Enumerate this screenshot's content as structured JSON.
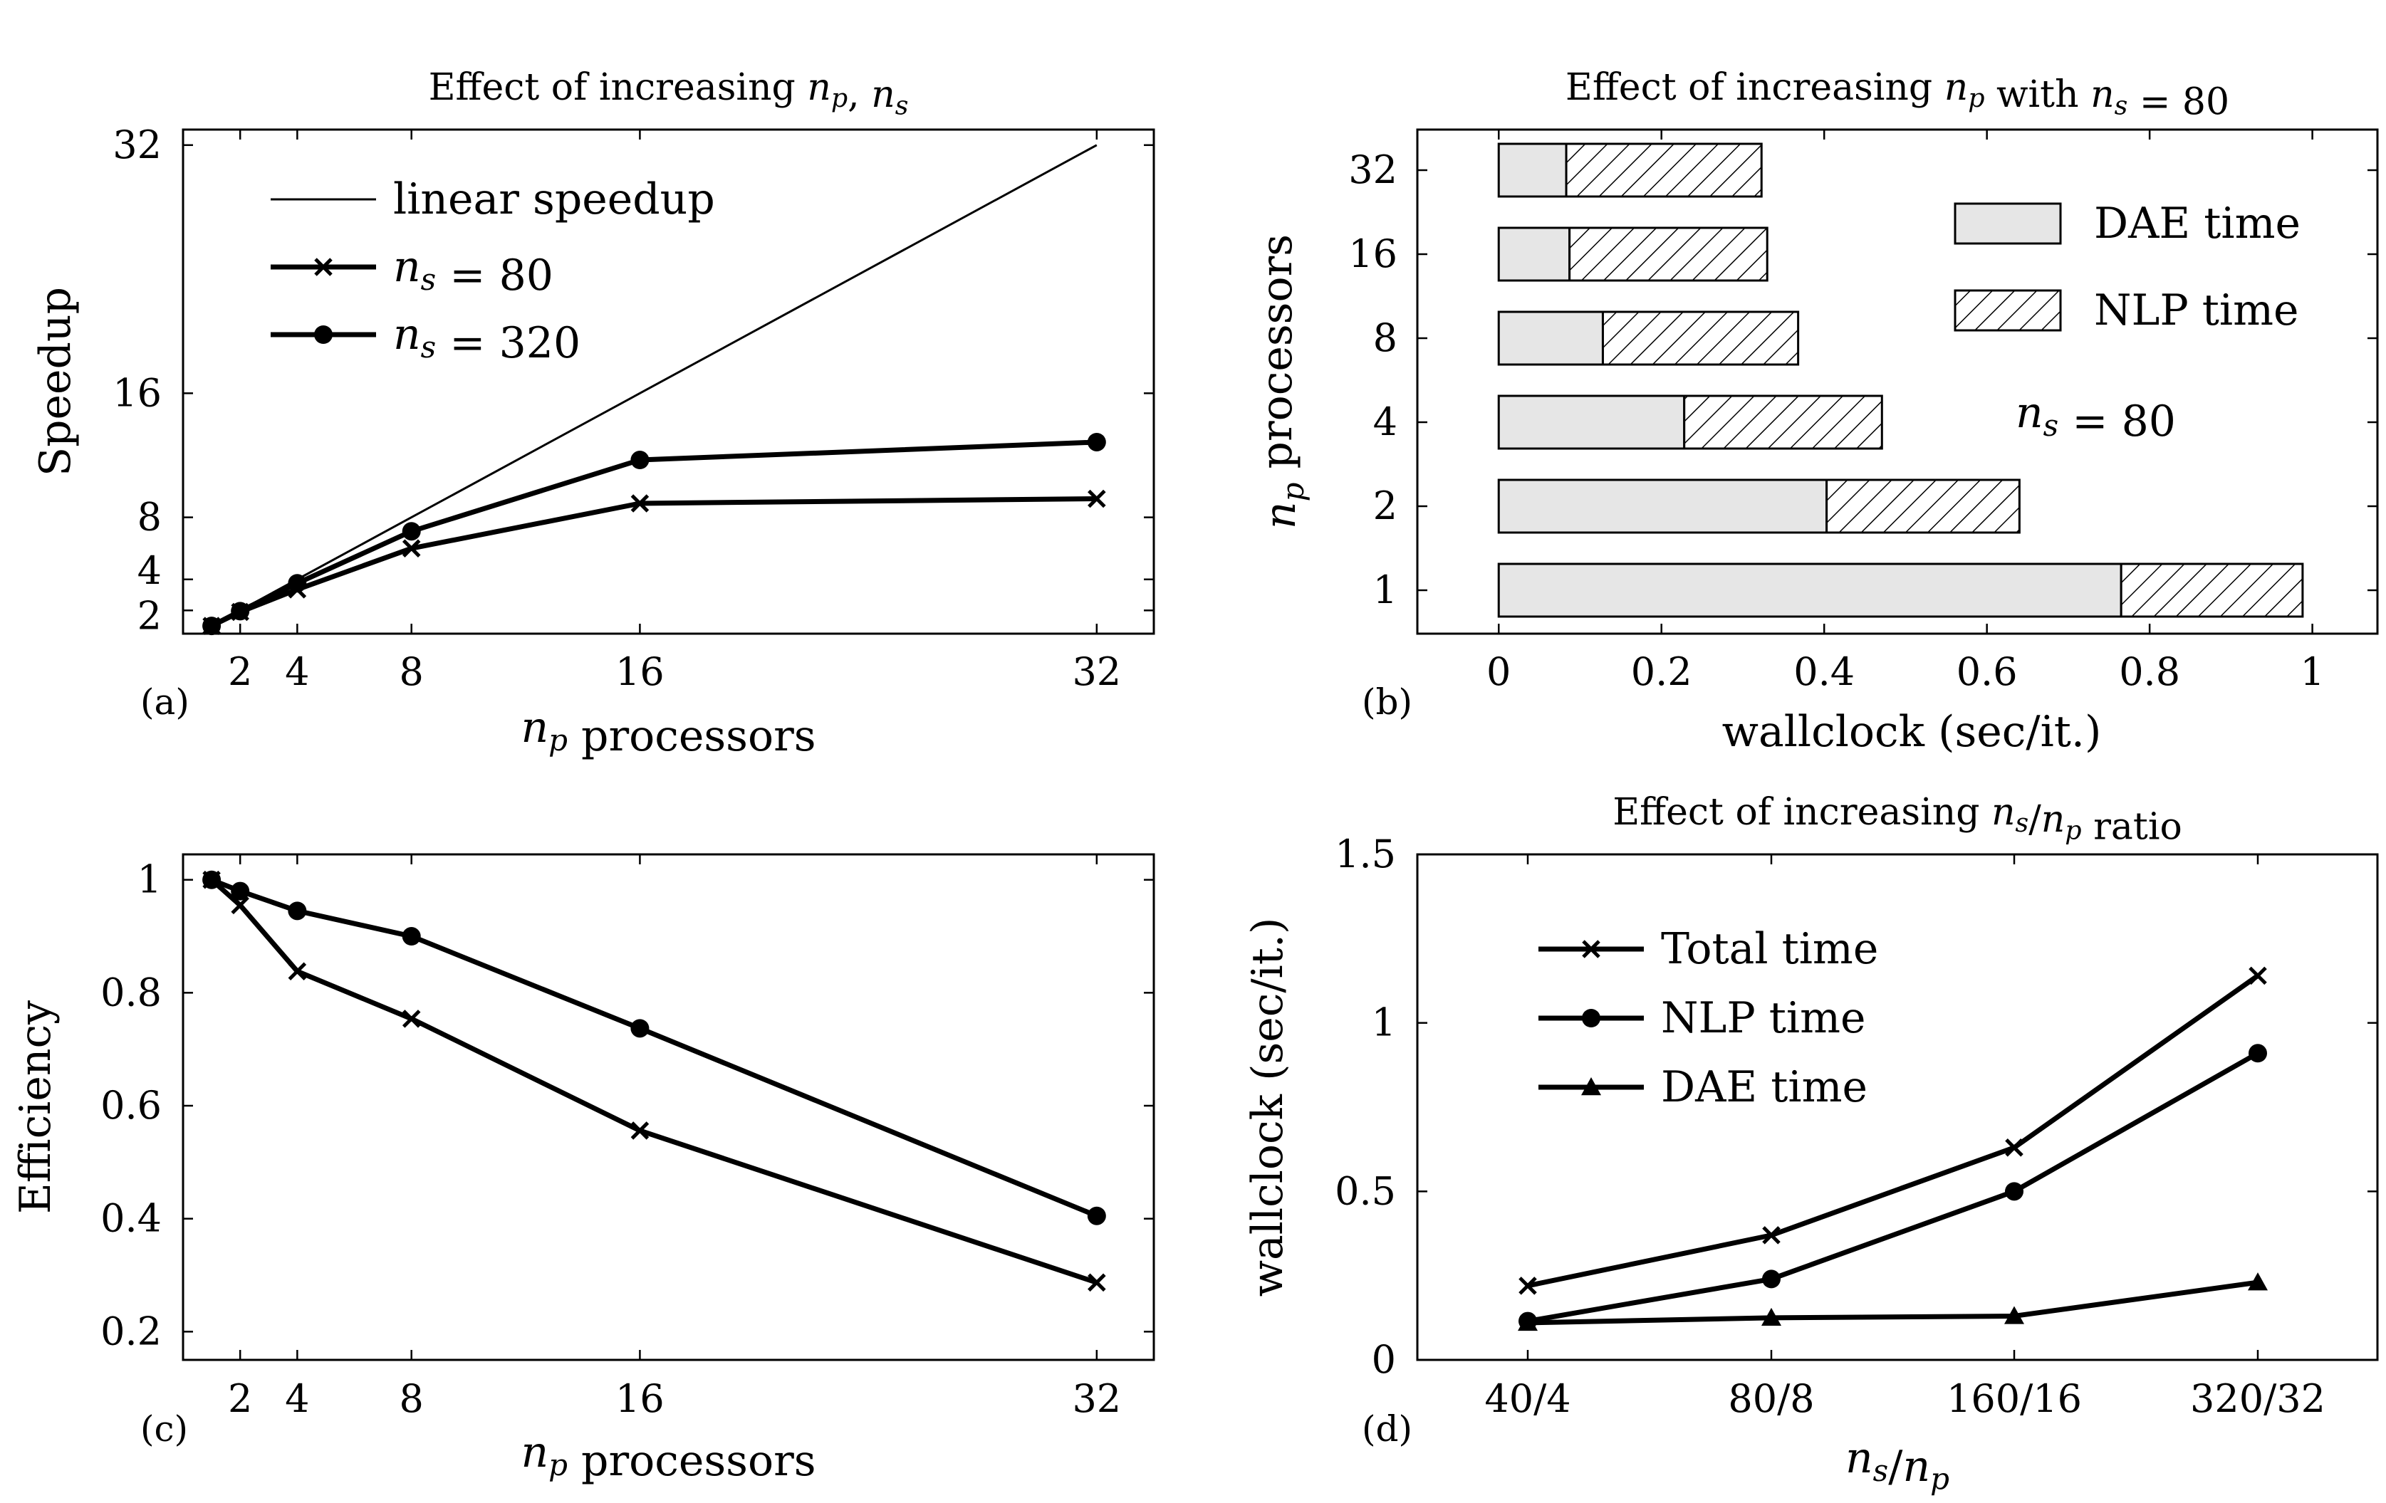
{
  "chart_data": [
    {
      "id": "a",
      "type": "line",
      "panel_label": "(a)",
      "title": "Effect of increasing n_p, n_s",
      "xlabel": "n_p processors",
      "ylabel": "Speedup",
      "x": [
        1,
        2,
        4,
        8,
        16,
        32
      ],
      "xticks": [
        2,
        4,
        8,
        16,
        32
      ],
      "yticks": [
        2,
        4,
        8,
        16,
        32
      ],
      "xlim": [
        0,
        34
      ],
      "ylim": [
        0.5,
        33
      ],
      "series": [
        {
          "name": "linear speedup",
          "marker": "none",
          "values": [
            1,
            2,
            4,
            8,
            16,
            32
          ]
        },
        {
          "name": "n_s = 80",
          "marker": "x",
          "values": [
            1,
            1.9,
            3.35,
            6.0,
            8.9,
            9.2
          ]
        },
        {
          "name": "n_s = 320",
          "marker": "o",
          "values": [
            1,
            1.95,
            3.75,
            7.1,
            11.7,
            12.85
          ]
        }
      ],
      "legend": [
        "linear speedup",
        "n_s = 80",
        "n_s = 320"
      ],
      "legend_position": "top-left"
    },
    {
      "id": "b",
      "type": "bar",
      "orientation": "horizontal",
      "stacked": true,
      "panel_label": "(b)",
      "title": "Effect of increasing n_p with n_s = 80",
      "xlabel": "wallclock (sec/it.)",
      "ylabel": "n_p processors",
      "categories": [
        "1",
        "2",
        "4",
        "8",
        "16",
        "32"
      ],
      "series": [
        {
          "name": "DAE time",
          "pattern": "solid-lightgray",
          "values": [
            0.765,
            0.403,
            0.228,
            0.128,
            0.087,
            0.083
          ]
        },
        {
          "name": "NLP time",
          "pattern": "hatched",
          "values": [
            0.223,
            0.237,
            0.243,
            0.24,
            0.243,
            0.24
          ]
        }
      ],
      "xticks": [
        "0",
        "0.2",
        "0.4",
        "0.6",
        "0.8",
        "1"
      ],
      "xlim": [
        -0.1,
        1.08
      ],
      "annotation": "n_s = 80",
      "legend_position": "top-right"
    },
    {
      "id": "c",
      "type": "line",
      "panel_label": "(c)",
      "title": "",
      "xlabel": "n_p processors",
      "ylabel": "Efficiency",
      "x": [
        1,
        2,
        4,
        8,
        16,
        32
      ],
      "xticks": [
        2,
        4,
        8,
        16,
        32
      ],
      "yticks": [
        "0.2",
        "0.4",
        "0.6",
        "0.8",
        "1"
      ],
      "xlim": [
        0,
        34
      ],
      "ylim": [
        0.15,
        1.045
      ],
      "series": [
        {
          "name": "n_s = 80",
          "marker": "x",
          "values": [
            1.0,
            0.955,
            0.838,
            0.754,
            0.556,
            0.287
          ]
        },
        {
          "name": "n_s = 320",
          "marker": "o",
          "values": [
            1.0,
            0.98,
            0.945,
            0.9,
            0.737,
            0.405
          ]
        }
      ]
    },
    {
      "id": "d",
      "type": "line",
      "panel_label": "(d)",
      "title": "Effect of increasing n_s/n_p ratio",
      "xlabel": "n_s/n_p",
      "ylabel": "wallclock (sec/it.)",
      "categories": [
        "40/4",
        "80/8",
        "160/16",
        "320/32"
      ],
      "yticks": [
        "0",
        "0.5",
        "1",
        "1.5"
      ],
      "ylim": [
        0,
        1.5
      ],
      "series": [
        {
          "name": "Total time",
          "marker": "x",
          "values": [
            0.22,
            0.37,
            0.63,
            1.14
          ]
        },
        {
          "name": "NLP time",
          "marker": "o",
          "values": [
            0.115,
            0.24,
            0.5,
            0.91
          ]
        },
        {
          "name": "DAE time",
          "marker": "triangle",
          "values": [
            0.11,
            0.125,
            0.13,
            0.23
          ]
        }
      ],
      "legend": [
        "Total time",
        "NLP time",
        "DAE time"
      ],
      "legend_position": "top-left"
    }
  ]
}
